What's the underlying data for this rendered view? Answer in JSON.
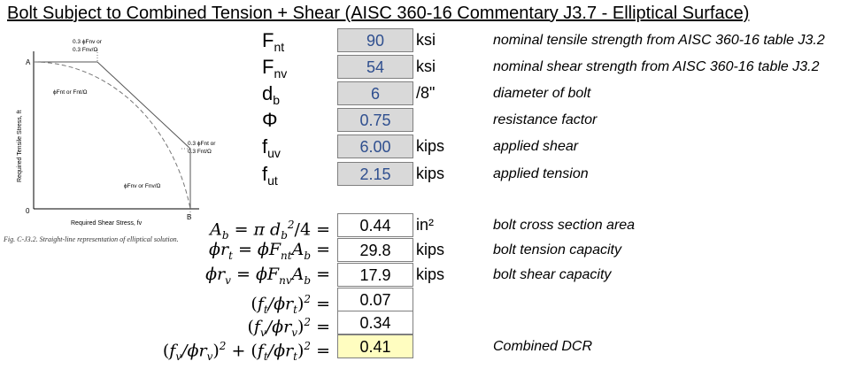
{
  "title": "Bolt Subject to Combined Tension + Shear (AISC 360-16 Commentary J3.7 - Elliptical Surface)",
  "figure": {
    "y_axis_label": "Required Tensile Stress, ft",
    "x_axis_label": "Required Shear Stress, fv",
    "label_a": "A",
    "label_b": "B",
    "label_zero": "0",
    "top_label_line1": "0.3 ϕFnv or",
    "top_label_line2": "0.3 Fnv/Ω",
    "left_label": "ϕFnt or Fnt/Ω",
    "right_label_line1": "0.3 ϕFnt or",
    "right_label_line2": "0.3 Fnt/Ω",
    "bottom_label": "ϕFnv or Fnv/Ω",
    "caption": "Fig. C-J3.2.  Straight-line representation of elliptical solution."
  },
  "inputs": [
    {
      "sym_main": "F",
      "sym_sub": "nt",
      "value": "90",
      "unit": "ksi",
      "desc": "nominal tensile strength from AISC 360-16 table J3.2"
    },
    {
      "sym_main": "F",
      "sym_sub": "nv",
      "value": "54",
      "unit": "ksi",
      "desc": "nominal shear strength from AISC 360-16 table J3.2"
    },
    {
      "sym_main": "d",
      "sym_sub": "b",
      "value": "6",
      "unit": "/8\"",
      "desc": "diameter of bolt"
    },
    {
      "sym_main": "Φ",
      "sym_sub": "",
      "value": "0.75",
      "unit": "",
      "desc": "resistance factor"
    },
    {
      "sym_main": "f",
      "sym_sub": "uv",
      "value": "6.00",
      "unit": "kips",
      "desc": "applied shear"
    },
    {
      "sym_main": "f",
      "sym_sub": "ut",
      "value": "2.15",
      "unit": "kips",
      "desc": "applied tension"
    }
  ],
  "outputs": [
    {
      "value": "0.44",
      "unit": "in²",
      "desc": "bolt cross section area"
    },
    {
      "value": "29.8",
      "unit": "kips",
      "desc": "bolt tension capacity"
    },
    {
      "value": "17.9",
      "unit": "kips",
      "desc": "bolt shear capacity"
    },
    {
      "value": "0.07",
      "unit": "",
      "desc": ""
    },
    {
      "value": "0.34",
      "unit": "",
      "desc": ""
    },
    {
      "value": "0.41",
      "unit": "",
      "desc": "Combined DCR"
    }
  ],
  "colors": {
    "input_fill": "#d9d9d9",
    "input_text": "#2f4f8f",
    "dcr_fill": "#fffdc0"
  }
}
